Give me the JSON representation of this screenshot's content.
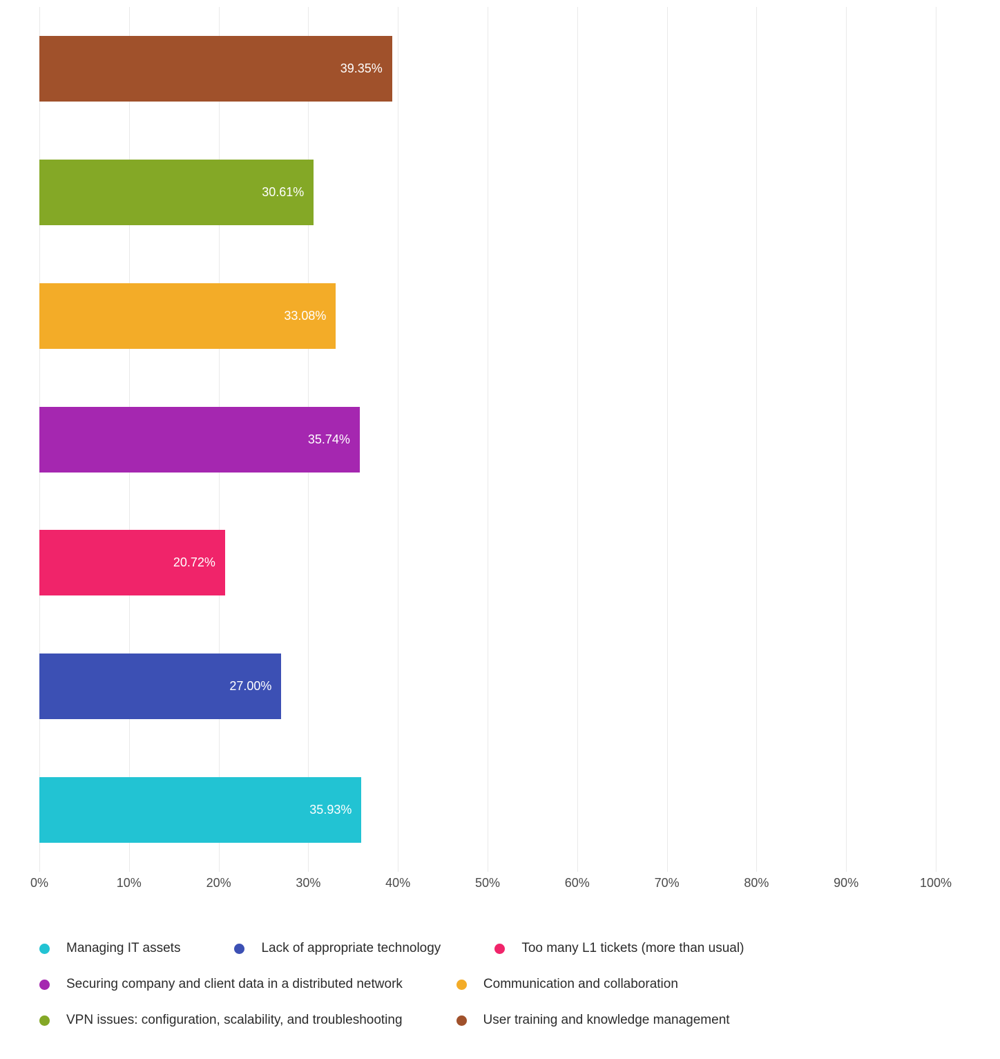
{
  "chart_data": {
    "type": "bar",
    "orientation": "horizontal",
    "title": "",
    "xlabel": "",
    "ylabel": "",
    "xlim": [
      0,
      100
    ],
    "grid": "vertical",
    "legend_position": "bottom",
    "x_ticks": [
      "0%",
      "10%",
      "20%",
      "30%",
      "40%",
      "50%",
      "60%",
      "70%",
      "80%",
      "90%",
      "100%"
    ],
    "x_tick_values": [
      0,
      10,
      20,
      30,
      40,
      50,
      60,
      70,
      80,
      90,
      100
    ],
    "series": [
      {
        "name": "Managing IT assets",
        "value": 35.93,
        "label": "35.93%",
        "color": "#22C3D3"
      },
      {
        "name": "Lack of appropriate technology",
        "value": 27.0,
        "label": "27.00%",
        "color": "#3C50B4"
      },
      {
        "name": "Too many L1 tickets (more than usual)",
        "value": 20.72,
        "label": "20.72%",
        "color": "#F0246A"
      },
      {
        "name": "Securing company and client data in a distributed network",
        "value": 35.74,
        "label": "35.74%",
        "color": "#A527B0"
      },
      {
        "name": "Communication and collaboration",
        "value": 33.08,
        "label": "33.08%",
        "color": "#F3AC28"
      },
      {
        "name": "VPN issues: configuration, scalability, and troubleshooting",
        "value": 30.61,
        "label": "30.61%",
        "color": "#84A826"
      },
      {
        "name": "User training and knowledge management",
        "value": 39.35,
        "label": "39.35%",
        "color": "#A0512B"
      }
    ],
    "bar_order_top_to_bottom": [
      "User training and knowledge management",
      "VPN issues: configuration, scalability, and troubleshooting",
      "Communication and collaboration",
      "Securing company and client data in a distributed network",
      "Too many L1 tickets (more than usual)",
      "Lack of appropriate technology",
      "Managing IT assets"
    ]
  }
}
